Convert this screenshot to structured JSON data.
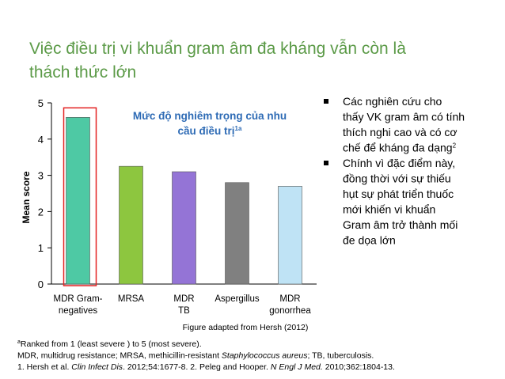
{
  "slide_title": [
    "Việc điều trị vi khuẩn gram âm đa kháng vẫn còn là",
    "thách thức lớn"
  ],
  "chart_data": {
    "type": "bar",
    "title": [
      "Mức độ nghiêm trọng của nhu",
      "cầu điều trị"
    ],
    "title_sup": "1a",
    "y_label": "Mean score",
    "categories": [
      [
        "MDR Gram-",
        "negatives"
      ],
      [
        "MRSA"
      ],
      [
        "MDR",
        "TB"
      ],
      [
        "Aspergillus"
      ],
      [
        "MDR",
        "gonorrhea"
      ]
    ],
    "values": [
      4.6,
      3.25,
      3.1,
      2.8,
      2.7
    ],
    "colors": [
      "#4ec9a4",
      "#8dc63f",
      "#9474d6",
      "#808080",
      "#bfe3f5"
    ],
    "ylim": [
      0,
      5
    ],
    "yticks": [
      0,
      1,
      2,
      3,
      4,
      5
    ],
    "highlight_color": "#e32222",
    "source": "Figure adapted from Hersh (2012)"
  },
  "bullets": [
    {
      "lines": [
        "Các nghiên cứu cho",
        "thấy VK gram âm có tính",
        "thích nghi cao và có cơ",
        "chế để kháng đa dạng"
      ],
      "sup": "2"
    },
    {
      "lines": [
        "Chính vì đặc điểm này,",
        "đồng thời với  sự thiếu",
        "hụt sự phát triển thuốc",
        "mới khiến vi khuẩn",
        "Gram âm trở thành mối",
        "đe dọa lớn"
      ]
    }
  ],
  "footnotes": [
    [
      {
        "text": "a",
        "sup": true
      },
      {
        "text": "Ranked from 1 (least severe ) to 5 (most severe)."
      }
    ],
    [
      {
        "text": "MDR, multidrug resistance; MRSA, methicillin-resistant "
      },
      {
        "text": "Staphylococcus aureus",
        "italic": true
      },
      {
        "text": "; TB, tuberculosis."
      }
    ],
    [
      {
        "text": "1. Hersh et al. "
      },
      {
        "text": "Clin Infect Dis",
        "italic": true
      },
      {
        "text": ". 2012;54:1677-8. 2. Peleg and Hooper. "
      },
      {
        "text": "N Engl J Med.",
        "italic": true
      },
      {
        "text": " 2010;362:1804-13."
      }
    ]
  ]
}
